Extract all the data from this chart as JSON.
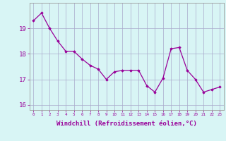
{
  "x": [
    0,
    1,
    2,
    3,
    4,
    5,
    6,
    7,
    8,
    9,
    10,
    11,
    12,
    13,
    14,
    15,
    16,
    17,
    18,
    19,
    20,
    21,
    22,
    23
  ],
  "y": [
    19.3,
    19.6,
    19.0,
    18.5,
    18.1,
    18.1,
    17.8,
    17.55,
    17.4,
    17.0,
    17.3,
    17.35,
    17.35,
    17.35,
    16.75,
    16.5,
    17.05,
    18.2,
    18.25,
    17.35,
    17.0,
    16.5,
    16.6,
    16.7
  ],
  "line_color": "#990099",
  "marker": "D",
  "marker_size": 1.8,
  "bg_color": "#d8f5f5",
  "grid_color": "#aaaacc",
  "xlabel": "Windchill (Refroidissement éolien,°C)",
  "xlabel_fontsize": 6.5,
  "tick_label_color": "#990099",
  "ylim": [
    15.8,
    20.0
  ],
  "xlim": [
    -0.5,
    23.5
  ],
  "yticks": [
    16,
    17,
    18,
    19
  ],
  "xticks": [
    0,
    1,
    2,
    3,
    4,
    5,
    6,
    7,
    8,
    9,
    10,
    11,
    12,
    13,
    14,
    15,
    16,
    17,
    18,
    19,
    20,
    21,
    22,
    23
  ],
  "xtick_labels": [
    "0",
    "1",
    "2",
    "3",
    "4",
    "5",
    "6",
    "7",
    "8",
    "9",
    "10",
    "11",
    "12",
    "13",
    "14",
    "15",
    "16",
    "17",
    "18",
    "19",
    "20",
    "21",
    "22",
    "23"
  ]
}
